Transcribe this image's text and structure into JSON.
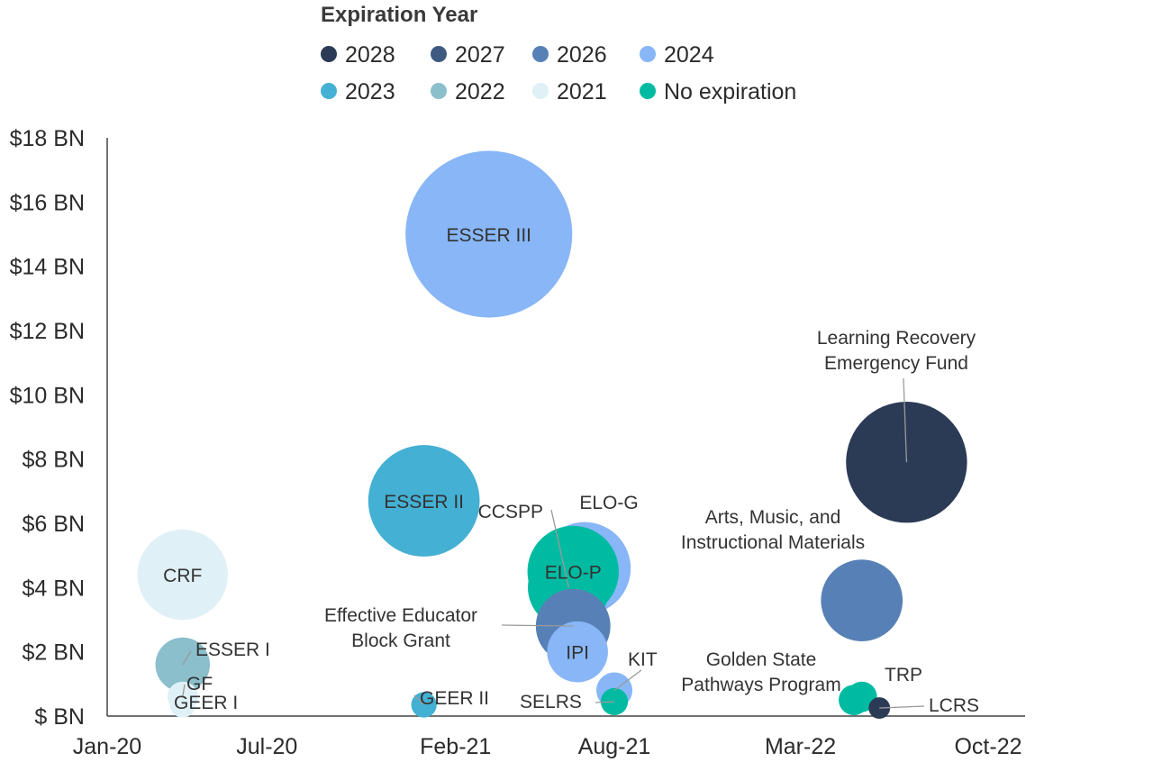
{
  "chart_data": {
    "type": "scatter",
    "legend": {
      "title": "Expiration Year",
      "placement": "top-center",
      "items": [
        {
          "label": "2028",
          "color": "#2b3a55"
        },
        {
          "label": "2027",
          "color": "#3f5a80"
        },
        {
          "label": "2026",
          "color": "#5781b6"
        },
        {
          "label": "2024",
          "color": "#88b6f7"
        },
        {
          "label": "2023",
          "color": "#44b0d3"
        },
        {
          "label": "2022",
          "color": "#8bbfcb"
        },
        {
          "label": "2021",
          "color": "#dff0f7"
        },
        {
          "label": "No expiration",
          "color": "#00bba1"
        }
      ]
    },
    "x_axis": {
      "type": "date",
      "range": [
        "2020-01-01",
        "2022-10-01"
      ],
      "ticks": [
        "Jan-20",
        "Jul-20",
        "Feb-21",
        "Aug-21",
        "Mar-22",
        "Oct-22"
      ],
      "tick_dates": [
        "2020-01-01",
        "2020-07-01",
        "2021-02-01",
        "2021-08-01",
        "2022-03-01",
        "2022-10-01"
      ]
    },
    "y_axis": {
      "range": [
        0,
        18
      ],
      "ticks": [
        "$ BN",
        "$2 BN",
        "$4 BN",
        "$6 BN",
        "$8 BN",
        "$10 BN",
        "$12 BN",
        "$14 BN",
        "$16 BN",
        "$18 BN"
      ],
      "tick_values": [
        0,
        2,
        4,
        6,
        8,
        10,
        12,
        14,
        16,
        18
      ]
    },
    "grid": false,
    "series": [
      {
        "label": "ESSER III",
        "date": "2021-03-11",
        "y": 15.0,
        "size": 15.0,
        "color": "#88b6f7",
        "label_mode": "inside"
      },
      {
        "label": "Learning Recovery Emergency Fund",
        "date": "2022-06-30",
        "y": 7.9,
        "size": 7.9,
        "color": "#2b3a55",
        "label_mode": "callout"
      },
      {
        "label": "ESSER II",
        "date": "2020-12-27",
        "y": 6.7,
        "size": 6.7,
        "color": "#44b0d3",
        "label_mode": "inside"
      },
      {
        "label": "CRF",
        "date": "2020-03-27",
        "y": 4.4,
        "size": 4.4,
        "color": "#dff0f7",
        "label_mode": "inside"
      },
      {
        "label": "ELO-G",
        "date": "2021-06-28",
        "y": 4.6,
        "size": 4.6,
        "color": "#88b6f7",
        "label_mode": "callout"
      },
      {
        "label": "CCSPP",
        "date": "2021-06-10",
        "y": 4.0,
        "size": 3.6,
        "color": "#00bba1",
        "label_mode": "callout"
      },
      {
        "label": "ELO-P",
        "date": "2021-06-15",
        "y": 4.5,
        "size": 4.5,
        "color": "#00bba1",
        "label_mode": "inside"
      },
      {
        "label": "Effective Educator Block Grant",
        "date": "2021-06-15",
        "y": 2.8,
        "size": 3.0,
        "color": "#5781b6",
        "label_mode": "callout"
      },
      {
        "label": "IPI",
        "date": "2021-06-20",
        "y": 2.0,
        "size": 2.0,
        "color": "#88b6f7",
        "label_mode": "inside"
      },
      {
        "label": "Arts, Music, and Instructional Materials",
        "date": "2022-05-10",
        "y": 3.6,
        "size": 3.6,
        "color": "#5781b6",
        "label_mode": "callout"
      },
      {
        "label": "ESSER I",
        "date": "2020-03-27",
        "y": 1.6,
        "size": 1.6,
        "color": "#8bbfcb",
        "label_mode": "callout"
      },
      {
        "label": "GF",
        "date": "2020-03-27",
        "y": 0.6,
        "size": 0.5,
        "color": "#dff0f7",
        "label_mode": "callout"
      },
      {
        "label": "GEER I",
        "date": "2020-03-27",
        "y": 0.35,
        "size": 0.35,
        "color": "#dff0f7",
        "label_mode": "callout"
      },
      {
        "label": "GEER II",
        "date": "2020-12-27",
        "y": 0.35,
        "size": 0.35,
        "color": "#44b0d3",
        "label_mode": "callout"
      },
      {
        "label": "KIT",
        "date": "2021-08-01",
        "y": 0.8,
        "size": 0.7,
        "color": "#88b6f7",
        "label_mode": "callout"
      },
      {
        "label": "SELRS",
        "date": "2021-08-01",
        "y": 0.45,
        "size": 0.4,
        "color": "#00bba1",
        "label_mode": "callout"
      },
      {
        "label": "Golden State Pathways Program",
        "date": "2022-05-01",
        "y": 0.5,
        "size": 0.5,
        "color": "#00bba1",
        "label_mode": "callout"
      },
      {
        "label": "TRP",
        "date": "2022-05-10",
        "y": 0.6,
        "size": 0.5,
        "color": "#00bba1",
        "label_mode": "callout"
      },
      {
        "label": "LCRS",
        "date": "2022-05-30",
        "y": 0.25,
        "size": 0.25,
        "color": "#2b3a55",
        "label_mode": "callout"
      }
    ]
  }
}
